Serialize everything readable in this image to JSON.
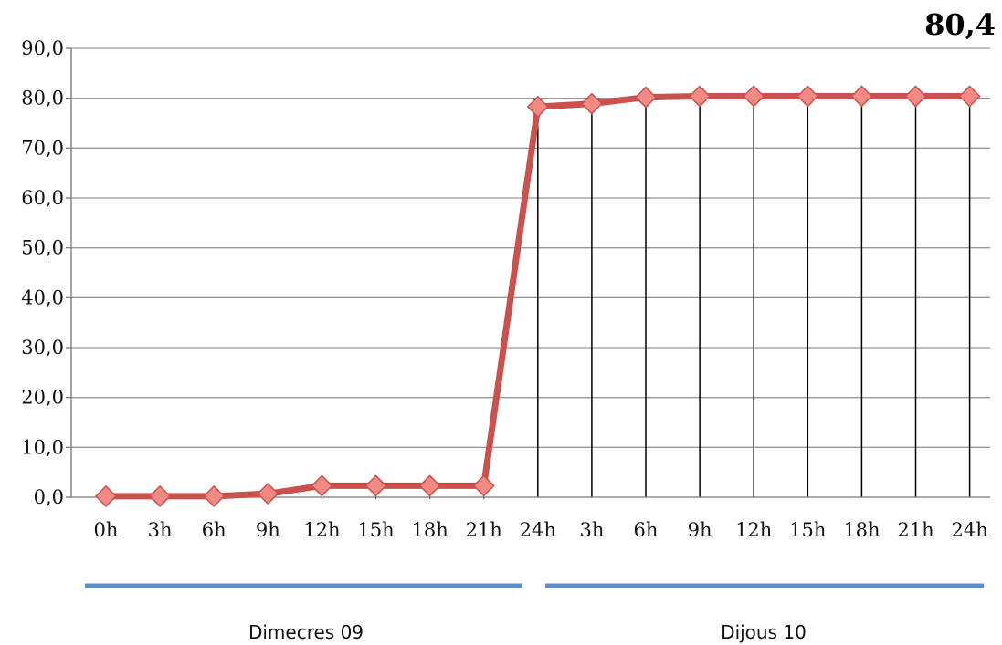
{
  "chart_data": {
    "type": "line",
    "title": "",
    "highlight_value": "80,4",
    "x": [
      "0h",
      "3h",
      "6h",
      "9h",
      "12h",
      "15h",
      "18h",
      "21h",
      "24h",
      "3h",
      "6h",
      "9h",
      "12h",
      "15h",
      "18h",
      "21h",
      "24h"
    ],
    "series": [
      {
        "values": [
          0.2,
          0.2,
          0.2,
          0.7,
          2.3,
          2.3,
          2.3,
          2.3,
          78.3,
          78.9,
          80.2,
          80.4,
          80.4,
          80.4,
          80.4,
          80.4,
          80.4
        ]
      }
    ],
    "ylim": [
      0,
      90
    ],
    "yticks": [
      "0,0",
      "10,0",
      "20,0",
      "30,0",
      "40,0",
      "50,0",
      "60,0",
      "70,0",
      "80,0",
      "90,0"
    ],
    "grid": true,
    "vertical_lines_from_index": 8,
    "groups": [
      {
        "label": "Dimecres 09"
      },
      {
        "label": "Dijous 10"
      }
    ],
    "colors": {
      "line": "#c9524e",
      "marker_fill": "#f08a83",
      "marker_stroke": "#c9524e",
      "group_bar": "#5b8fcb",
      "grid": "#999999",
      "vline": "#000000"
    }
  }
}
